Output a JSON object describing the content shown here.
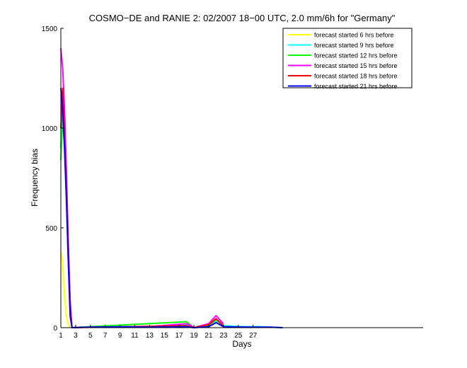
{
  "chart_data": {
    "type": "line",
    "title": "COSMO−DE and RANIE 2: 02/2007 18−00 UTC, 2.0 mm/6h for \"Germany\"",
    "xlabel": "Days",
    "ylabel": "Frequency bias",
    "xlim": [
      1,
      50
    ],
    "ylim": [
      0,
      1500
    ],
    "xticks": [
      1,
      3,
      5,
      7,
      9,
      11,
      13,
      15,
      17,
      19,
      21,
      23,
      25,
      27
    ],
    "yticks": [
      0,
      500,
      1000,
      1500
    ],
    "legend_position": "top-right",
    "series": [
      {
        "name": "forecast started 6 hrs before",
        "color": "#ffff00",
        "x": [
          1,
          1.25,
          1.5,
          1.75,
          2,
          2.25
        ],
        "values": [
          380,
          330,
          170,
          60,
          20,
          0
        ]
      },
      {
        "name": "forecast started 9 hrs before",
        "color": "#00ffff",
        "x": [
          1,
          1.25,
          1.5,
          1.75,
          2,
          2.25,
          2.5,
          5,
          9,
          14,
          18,
          18.5,
          19,
          21,
          22,
          23,
          26,
          28,
          31
        ],
        "values": [
          900,
          1150,
          1000,
          700,
          350,
          100,
          0,
          5,
          6,
          5,
          15,
          10,
          0,
          10,
          35,
          10,
          5,
          5,
          0
        ]
      },
      {
        "name": "forecast started 12 hrs before",
        "color": "#00ff00",
        "x": [
          1,
          1.25,
          1.5,
          1.75,
          2,
          2.25,
          2.5,
          18,
          18.5,
          19,
          21,
          22,
          23
        ],
        "values": [
          840,
          1050,
          900,
          650,
          350,
          120,
          0,
          30,
          15,
          0,
          10,
          40,
          5
        ]
      },
      {
        "name": "forecast started 15 hrs before",
        "color": "#ff00ff",
        "x": [
          1,
          1.25,
          1.5,
          1.75,
          2,
          2.25,
          2.5,
          5,
          8,
          12,
          18,
          18.5,
          19,
          21,
          22,
          23
        ],
        "values": [
          1400,
          1300,
          1100,
          800,
          450,
          140,
          0,
          3,
          4,
          3,
          20,
          12,
          0,
          20,
          60,
          20
        ]
      },
      {
        "name": "forecast started 18 hrs before",
        "color": "#ff0000",
        "x": [
          1,
          1.25,
          1.5,
          1.75,
          2,
          2.25,
          2.5,
          18,
          18.5,
          19,
          21,
          22,
          23
        ],
        "values": [
          1000,
          1200,
          950,
          700,
          400,
          120,
          0,
          10,
          5,
          0,
          15,
          45,
          10
        ]
      },
      {
        "name": "forecast started 21 hrs before",
        "color": "#0000ff",
        "x": [
          1,
          1.25,
          1.5,
          1.75,
          2,
          2.25,
          2.5,
          5,
          9,
          13,
          18,
          19,
          21,
          22,
          23,
          26,
          29,
          31
        ],
        "values": [
          1200,
          1100,
          900,
          650,
          350,
          60,
          0,
          3,
          4,
          3,
          5,
          0,
          5,
          25,
          5,
          3,
          3,
          0
        ]
      }
    ]
  }
}
